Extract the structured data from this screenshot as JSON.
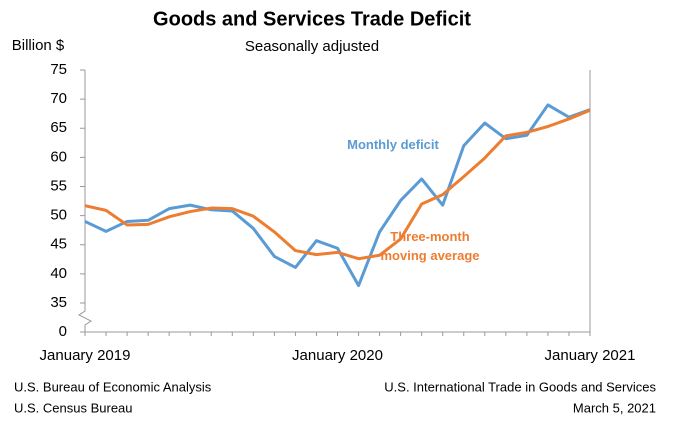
{
  "chart_data": {
    "type": "line",
    "title": "Goods and Services Trade Deficit",
    "subtitle": "Seasonally adjusted",
    "y_label": "Billion $",
    "categories": [
      "January 2019",
      null,
      null,
      null,
      null,
      null,
      null,
      null,
      null,
      null,
      null,
      null,
      "January 2020",
      null,
      null,
      null,
      null,
      null,
      null,
      null,
      null,
      null,
      null,
      null,
      "January 2021"
    ],
    "series": [
      {
        "name": "Monthly deficit",
        "color": "#5b9bd5",
        "values": [
          49.0,
          47.3,
          49.0,
          49.2,
          51.2,
          51.8,
          51.0,
          50.8,
          47.8,
          43.0,
          41.1,
          45.7,
          44.4,
          38.0,
          47.2,
          52.6,
          56.3,
          51.8,
          62.0,
          65.9,
          63.2,
          63.8,
          69.0,
          66.9,
          68.2
        ]
      },
      {
        "name": "Three-month moving average",
        "color": "#ed7d31",
        "values": [
          51.7,
          50.9,
          48.4,
          48.5,
          49.8,
          50.7,
          51.3,
          51.2,
          49.9,
          47.2,
          44.0,
          43.3,
          43.7,
          42.6,
          43.2,
          46.0,
          52.0,
          53.6,
          56.7,
          59.9,
          63.7,
          64.3,
          65.3,
          66.6,
          68.1
        ]
      }
    ],
    "ylim": [
      0,
      75
    ],
    "axis_break": [
      0,
      35
    ],
    "yticks": [
      0,
      35,
      40,
      45,
      50,
      55,
      60,
      65,
      70,
      75
    ],
    "grid": false,
    "source_left": [
      "U.S. Bureau of Economic Analysis",
      "U.S. Census Bureau"
    ],
    "source_right": [
      "U.S. International Trade in Goods and Services",
      "March 5, 2021"
    ]
  }
}
